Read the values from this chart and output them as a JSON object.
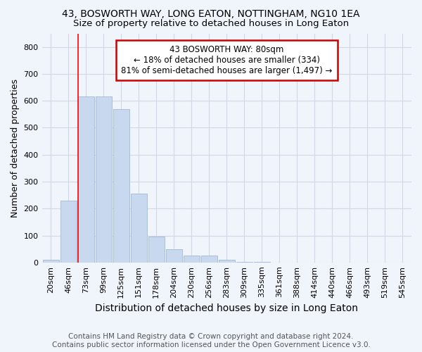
{
  "title": "43, BOSWORTH WAY, LONG EATON, NOTTINGHAM, NG10 1EA",
  "subtitle": "Size of property relative to detached houses in Long Eaton",
  "xlabel": "Distribution of detached houses by size in Long Eaton",
  "ylabel": "Number of detached properties",
  "categories": [
    "20sqm",
    "46sqm",
    "73sqm",
    "99sqm",
    "125sqm",
    "151sqm",
    "178sqm",
    "204sqm",
    "230sqm",
    "256sqm",
    "283sqm",
    "309sqm",
    "335sqm",
    "361sqm",
    "388sqm",
    "414sqm",
    "440sqm",
    "466sqm",
    "493sqm",
    "519sqm",
    "545sqm"
  ],
  "values": [
    10,
    230,
    615,
    615,
    570,
    255,
    95,
    50,
    25,
    25,
    10,
    2,
    2,
    0,
    0,
    0,
    0,
    0,
    0,
    0,
    0
  ],
  "bar_color": "#c8d8ee",
  "bar_edge_color": "#a0b8d8",
  "property_line_index": 2,
  "annotation_line1": "43 BOSWORTH WAY: 80sqm",
  "annotation_line2": "← 18% of detached houses are smaller (334)",
  "annotation_line3": "81% of semi-detached houses are larger (1,497) →",
  "annotation_box_color": "#cc0000",
  "ylim": [
    0,
    850
  ],
  "yticks": [
    0,
    100,
    200,
    300,
    400,
    500,
    600,
    700,
    800
  ],
  "footer_line1": "Contains HM Land Registry data © Crown copyright and database right 2024.",
  "footer_line2": "Contains public sector information licensed under the Open Government Licence v3.0.",
  "background_color": "#f0f4fb",
  "plot_background": "#f0f4fb",
  "title_fontsize": 10,
  "subtitle_fontsize": 9.5,
  "xlabel_fontsize": 10,
  "ylabel_fontsize": 9,
  "tick_fontsize": 8,
  "footer_fontsize": 7.5,
  "grid_color": "#d0d8e8"
}
